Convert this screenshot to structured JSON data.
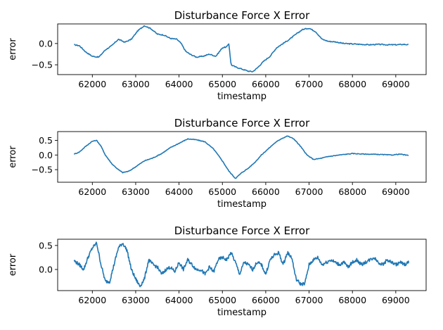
{
  "chart_data": [
    {
      "type": "line",
      "title": "Disturbance Force X Error",
      "xlabel": "timestamp",
      "ylabel": "error",
      "xlim": [
        61200,
        69700
      ],
      "ylim": [
        -0.73,
        0.46
      ],
      "xticks": [
        62000,
        63000,
        64000,
        65000,
        66000,
        67000,
        68000,
        69000
      ],
      "yticks": [
        -0.5,
        0.0
      ],
      "ytick_labels": [
        "−0.5",
        "0.0"
      ],
      "grid": false,
      "series": [
        {
          "color": "#1f77b4",
          "x": [
            61580,
            61700,
            61850,
            62000,
            62150,
            62300,
            62450,
            62600,
            62750,
            62900,
            63050,
            63200,
            63350,
            63500,
            63650,
            63800,
            63950,
            64050,
            64150,
            64250,
            64400,
            64550,
            64700,
            64850,
            65000,
            65100,
            65150,
            65200,
            65300,
            65450,
            65600,
            65700,
            65800,
            65950,
            66100,
            66250,
            66400,
            66550,
            66700,
            66850,
            67000,
            67150,
            67300,
            67450,
            67600,
            67800,
            68000,
            68200,
            68400,
            68600,
            68800,
            69000,
            69200,
            69300
          ],
          "values": [
            -0.03,
            -0.05,
            -0.2,
            -0.3,
            -0.32,
            -0.15,
            -0.05,
            0.1,
            0.03,
            0.1,
            0.3,
            0.42,
            0.35,
            0.22,
            0.2,
            0.12,
            0.1,
            0.0,
            -0.18,
            -0.25,
            -0.32,
            -0.3,
            -0.25,
            -0.3,
            -0.1,
            -0.08,
            0.0,
            -0.5,
            -0.55,
            -0.6,
            -0.65,
            -0.66,
            -0.58,
            -0.42,
            -0.3,
            -0.1,
            0.0,
            0.1,
            0.22,
            0.33,
            0.36,
            0.28,
            0.1,
            0.05,
            0.04,
            0.0,
            -0.01,
            -0.02,
            -0.03,
            -0.02,
            -0.03,
            -0.03,
            -0.02,
            -0.03
          ]
        }
      ]
    },
    {
      "type": "line",
      "title": "Disturbance Force X Error",
      "xlabel": "timestamp",
      "ylabel": "error",
      "xlim": [
        61200,
        69700
      ],
      "ylim": [
        -0.93,
        0.8
      ],
      "xticks": [
        62000,
        63000,
        64000,
        65000,
        66000,
        67000,
        68000,
        69000
      ],
      "yticks": [
        -0.5,
        0.0,
        0.5
      ],
      "ytick_labels": [
        "−0.5",
        "0.0",
        "0.5"
      ],
      "grid": false,
      "series": [
        {
          "color": "#1f77b4",
          "x": [
            61580,
            61700,
            61850,
            62000,
            62100,
            62200,
            62300,
            62450,
            62600,
            62700,
            62850,
            63000,
            63200,
            63400,
            63600,
            63800,
            64000,
            64200,
            64400,
            64600,
            64800,
            65000,
            65150,
            65300,
            65450,
            65600,
            65750,
            65900,
            66050,
            66200,
            66350,
            66500,
            66650,
            66800,
            66950,
            67100,
            67250,
            67450,
            67700,
            68000,
            68300,
            68600,
            68900,
            69100,
            69300
          ],
          "values": [
            0.03,
            0.1,
            0.3,
            0.47,
            0.5,
            0.3,
            0.0,
            -0.3,
            -0.5,
            -0.6,
            -0.55,
            -0.4,
            -0.2,
            -0.1,
            0.05,
            0.25,
            0.4,
            0.55,
            0.52,
            0.45,
            0.2,
            -0.2,
            -0.55,
            -0.8,
            -0.6,
            -0.45,
            -0.25,
            0.0,
            0.2,
            0.4,
            0.55,
            0.65,
            0.55,
            0.3,
            0.0,
            -0.15,
            -0.12,
            -0.05,
            0.0,
            0.05,
            0.03,
            0.02,
            0.0,
            0.03,
            -0.02
          ]
        }
      ]
    },
    {
      "type": "line",
      "title": "Disturbance Force X Error",
      "xlabel": "timestamp",
      "ylabel": "error",
      "xlim": [
        61200,
        69700
      ],
      "ylim": [
        -0.44,
        0.63
      ],
      "xticks": [
        62000,
        63000,
        64000,
        65000,
        66000,
        67000,
        68000,
        69000
      ],
      "yticks": [
        0.0,
        0.5
      ],
      "ytick_labels": [
        "0.0",
        "0.5"
      ],
      "grid": false,
      "series": [
        {
          "color": "#1f77b4",
          "x": [
            61580,
            61700,
            61800,
            61900,
            62000,
            62100,
            62200,
            62300,
            62400,
            62500,
            62600,
            62700,
            62800,
            62900,
            63000,
            63100,
            63200,
            63300,
            63400,
            63500,
            63600,
            63700,
            63800,
            63900,
            64000,
            64100,
            64200,
            64300,
            64400,
            64500,
            64600,
            64700,
            64800,
            64900,
            65000,
            65100,
            65200,
            65300,
            65400,
            65500,
            65600,
            65700,
            65800,
            65900,
            66000,
            66100,
            66200,
            66300,
            66400,
            66500,
            66600,
            66700,
            66800,
            66900,
            67000,
            67100,
            67200,
            67300,
            67400,
            67500,
            67600,
            67700,
            67800,
            67900,
            68000,
            68100,
            68200,
            68300,
            68400,
            68500,
            68600,
            68700,
            68800,
            68900,
            69000,
            69100,
            69200,
            69300
          ],
          "values": [
            0.18,
            0.1,
            0.0,
            0.25,
            0.45,
            0.55,
            0.1,
            -0.25,
            -0.25,
            0.1,
            0.45,
            0.55,
            0.4,
            0.0,
            -0.2,
            -0.35,
            -0.2,
            0.2,
            0.1,
            0.05,
            -0.1,
            0.0,
            0.05,
            -0.05,
            0.15,
            0.0,
            0.2,
            0.1,
            0.0,
            0.0,
            -0.1,
            0.05,
            -0.05,
            0.2,
            0.25,
            0.2,
            0.35,
            0.15,
            -0.1,
            0.15,
            0.1,
            0.0,
            0.15,
            0.1,
            -0.1,
            0.2,
            0.3,
            0.35,
            0.1,
            0.35,
            0.25,
            -0.2,
            -0.3,
            -0.3,
            0.1,
            0.2,
            0.25,
            0.1,
            0.15,
            0.2,
            0.15,
            0.1,
            0.15,
            0.05,
            0.15,
            0.2,
            0.1,
            0.15,
            0.2,
            0.25,
            0.15,
            0.1,
            0.2,
            0.15,
            0.1,
            0.15,
            0.1,
            0.15
          ]
        }
      ]
    }
  ]
}
